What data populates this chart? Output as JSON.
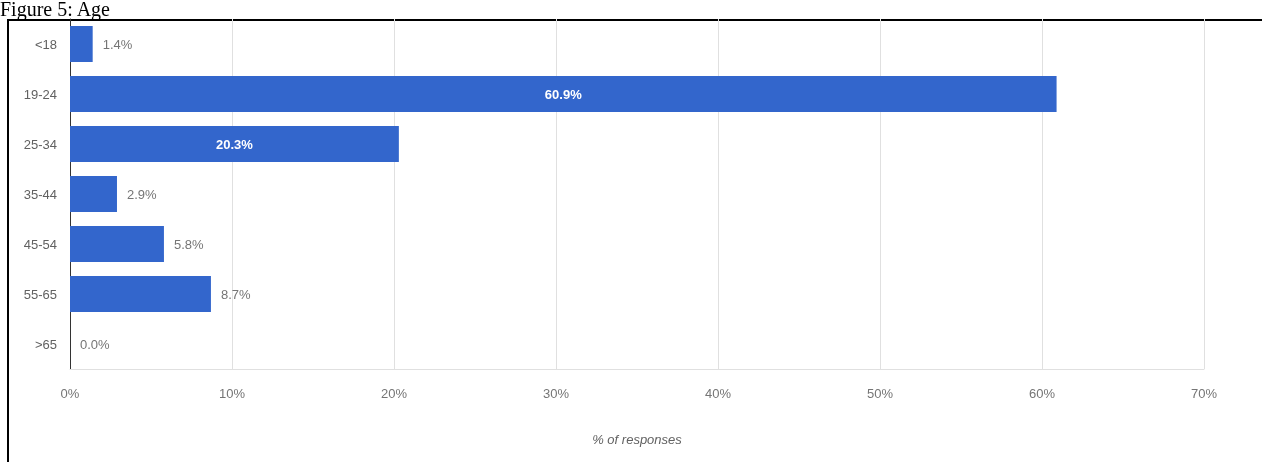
{
  "chart_data": {
    "type": "bar",
    "title": "Figure 5: Age",
    "orientation": "horizontal",
    "categories": [
      "<18",
      "19-24",
      "25-34",
      "35-44",
      "45-54",
      "55-65",
      ">65"
    ],
    "values": [
      1.4,
      60.9,
      20.3,
      2.9,
      5.8,
      8.7,
      0.0
    ],
    "color": "#3366cc",
    "value_labels": [
      "1.4%",
      "60.9%",
      "20.3%",
      "2.9%",
      "5.8%",
      "8.7%",
      "0.0%"
    ],
    "xlim": [
      0,
      70
    ],
    "xticks": [
      {
        "value": 0,
        "label": "0%"
      },
      {
        "value": 10,
        "label": "10%"
      },
      {
        "value": 20,
        "label": "20%"
      },
      {
        "value": 30,
        "label": "30%"
      },
      {
        "value": 40,
        "label": "40%"
      },
      {
        "value": 50,
        "label": "50%"
      },
      {
        "value": 60,
        "label": "60%"
      },
      {
        "value": 70,
        "label": "70%"
      }
    ],
    "xlabel": "% of responses",
    "grid": "x"
  }
}
